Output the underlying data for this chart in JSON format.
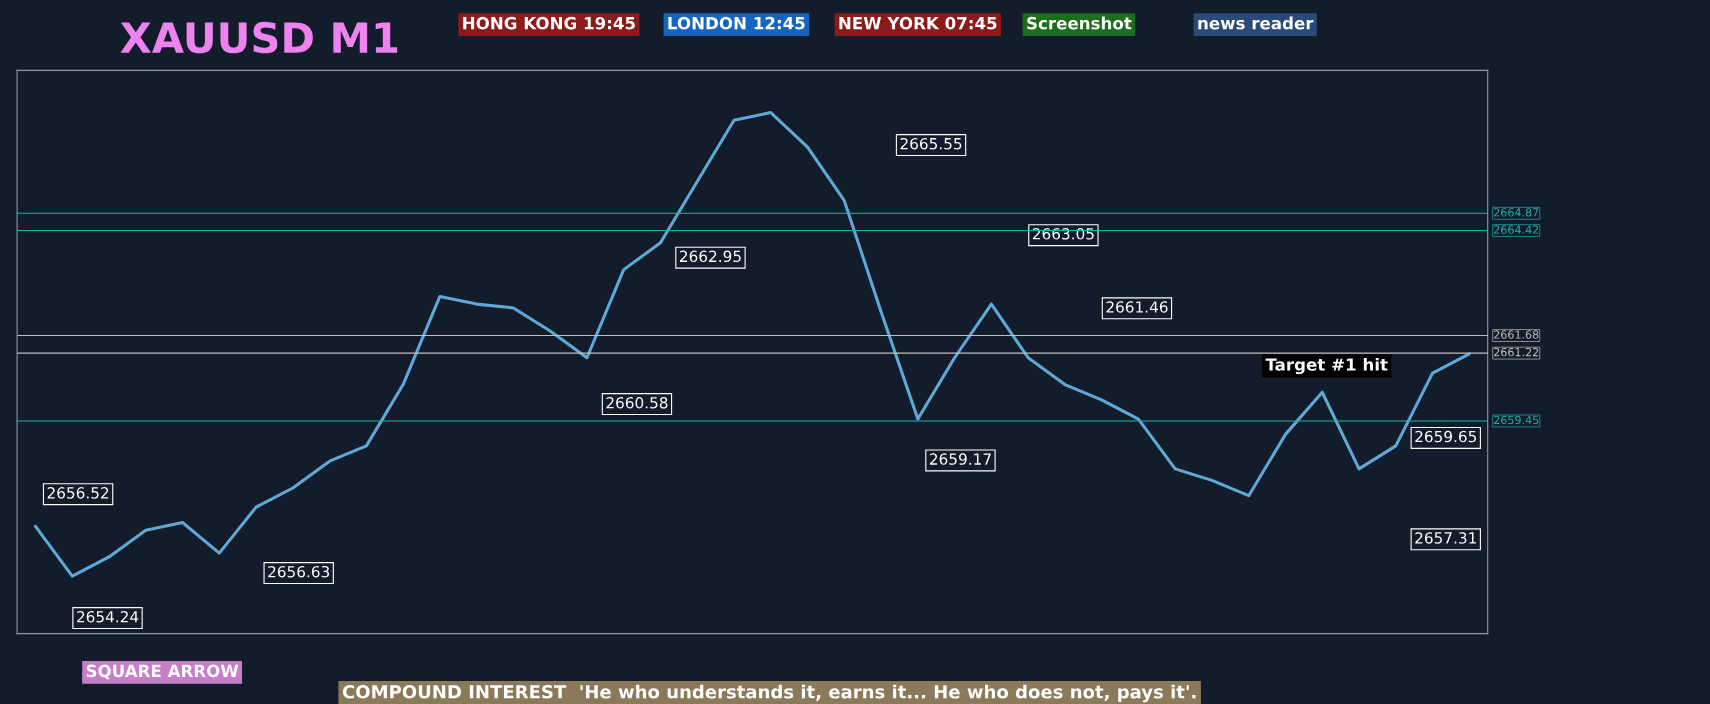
{
  "chart_data": {
    "type": "line",
    "title": "XAUUSD M1",
    "categories": [
      null,
      null,
      null,
      null,
      null,
      null,
      null,
      null,
      null,
      null,
      null,
      null,
      null,
      null,
      null,
      null,
      null,
      null,
      null,
      null,
      null,
      null,
      null,
      null,
      null,
      null,
      null,
      null,
      null,
      null,
      null,
      null,
      null,
      null,
      null,
      null,
      null,
      null,
      null,
      null
    ],
    "series": [
      {
        "color": "#5fa8d8",
        "values": [
          2656.7,
          2655.4,
          2655.9,
          2656.6,
          2656.8,
          2656.0,
          2657.2,
          2657.7,
          2658.4,
          2658.8,
          2660.4,
          2662.7,
          2662.5,
          2662.4,
          2661.8,
          2661.1,
          2663.4,
          2664.1,
          2665.7,
          2667.3,
          2667.5,
          2666.6,
          2665.2,
          2662.3,
          2659.5,
          2661.1,
          2662.5,
          2661.1,
          2660.4,
          2660.0,
          2659.5,
          2658.2,
          2657.9,
          2657.5,
          2659.1,
          2660.2,
          2658.2,
          2658.8,
          2660.7,
          2661.2
        ]
      }
    ],
    "ylim": [
      2653.9,
      2668.6
    ],
    "grid": false,
    "ref_lines": [
      {
        "axis": "y",
        "value": 2664.87,
        "label": "2664.87",
        "color": "#20b2aa"
      },
      {
        "axis": "y",
        "value": 2664.42,
        "label": "2664.42",
        "color": "#20b2aa"
      },
      {
        "axis": "y",
        "value": 2661.68,
        "label": "2661.68",
        "color": "#c0c0c0"
      },
      {
        "axis": "y",
        "value": 2661.22,
        "label": "2661.22",
        "color": "#c0c0c0"
      },
      {
        "axis": "y",
        "value": 2659.45,
        "label": "2659.45",
        "color": "#20b2aa"
      }
    ],
    "annotations": [
      "2656.52",
      "2660.58",
      "2662.95",
      "2665.55",
      "2663.05",
      "2661.46",
      "2659.17",
      "2657.31",
      "2659.65",
      "2654.24",
      "2656.63",
      "HONG KONG 19:45",
      "LONDON 12:45",
      "NEW YORK 07:45",
      "Screenshot",
      "news reader",
      "Target #1 hit",
      "SQUARE ARROW",
      "COMPOUND INTEREST  'He who understands it, earns it... He who does not, pays it'."
    ]
  }
}
